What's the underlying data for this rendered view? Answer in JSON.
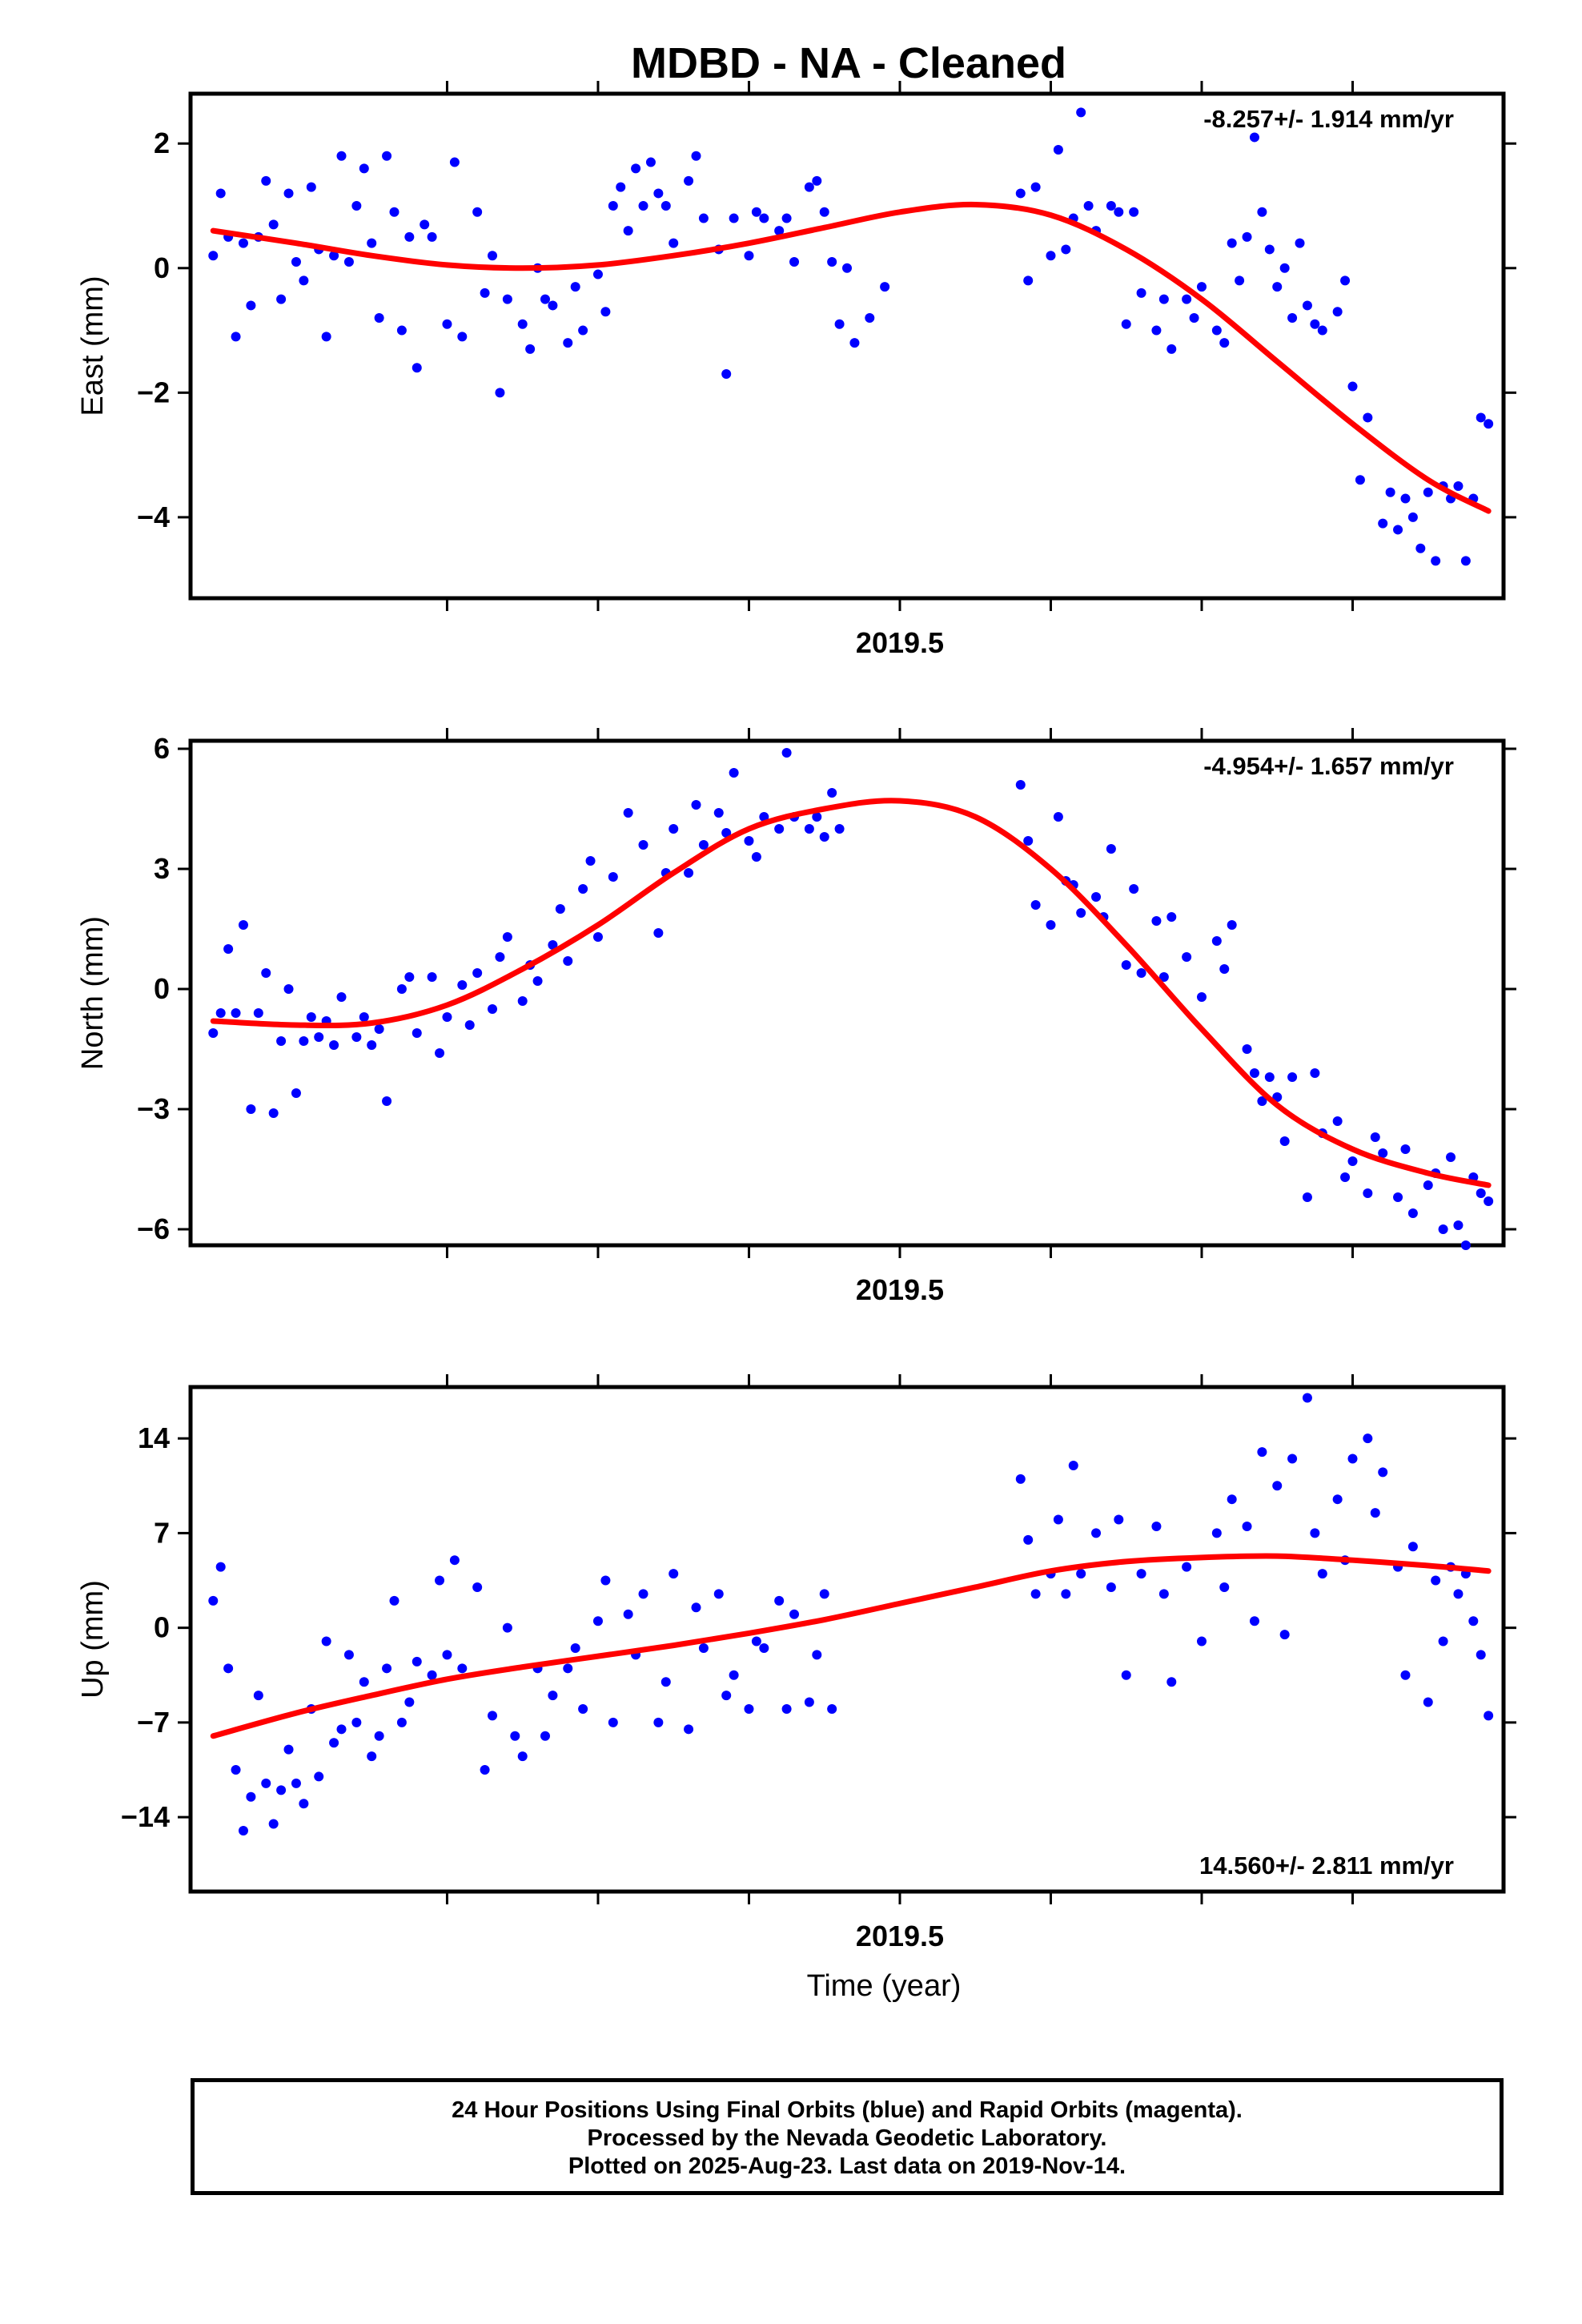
{
  "title": "MDBD  - NA - Cleaned",
  "colors": {
    "points": "#0000ff",
    "fit": "#ff0000",
    "frame": "#000000"
  },
  "footer": {
    "line1": "24 Hour Positions Using Final Orbits (blue) and Rapid Orbits (magenta).",
    "line2": "Processed by the Nevada Geodetic Laboratory.",
    "line3": "Plotted on 2025-Aug-23. Last data on 2019-Nov-14."
  },
  "chart_data": [
    {
      "type": "scatter",
      "ylabel": "East (mm)",
      "xlabel": "",
      "x_tick_label": "2019.5",
      "annotation": "-8.257+/- 1.914 mm/yr",
      "annotation_position": "top-right",
      "xlim": [
        2019.03,
        2019.9
      ],
      "ylim": [
        -5.3,
        2.8
      ],
      "yticks": [
        2,
        0,
        -2,
        -4
      ],
      "xticks": [
        2019.2,
        2019.3,
        2019.4,
        2019.5,
        2019.6,
        2019.7,
        2019.8
      ],
      "series": [
        {
          "kind": "points",
          "x": [
            2019.045,
            2019.05,
            2019.055,
            2019.06,
            2019.065,
            2019.07,
            2019.075,
            2019.08,
            2019.085,
            2019.09,
            2019.095,
            2019.1,
            2019.105,
            2019.11,
            2019.115,
            2019.12,
            2019.125,
            2019.13,
            2019.135,
            2019.14,
            2019.145,
            2019.15,
            2019.155,
            2019.16,
            2019.165,
            2019.17,
            2019.175,
            2019.18,
            2019.185,
            2019.19,
            2019.2,
            2019.205,
            2019.21,
            2019.22,
            2019.225,
            2019.23,
            2019.235,
            2019.24,
            2019.25,
            2019.255,
            2019.26,
            2019.265,
            2019.27,
            2019.28,
            2019.285,
            2019.29,
            2019.3,
            2019.305,
            2019.31,
            2019.315,
            2019.32,
            2019.325,
            2019.33,
            2019.335,
            2019.34,
            2019.345,
            2019.35,
            2019.36,
            2019.365,
            2019.37,
            2019.38,
            2019.385,
            2019.39,
            2019.4,
            2019.405,
            2019.41,
            2019.42,
            2019.425,
            2019.43,
            2019.44,
            2019.445,
            2019.45,
            2019.455,
            2019.46,
            2019.465,
            2019.47,
            2019.48,
            2019.49,
            2019.58,
            2019.585,
            2019.59,
            2019.6,
            2019.605,
            2019.61,
            2019.615,
            2019.62,
            2019.625,
            2019.63,
            2019.64,
            2019.645,
            2019.65,
            2019.655,
            2019.66,
            2019.67,
            2019.675,
            2019.68,
            2019.69,
            2019.695,
            2019.7,
            2019.71,
            2019.715,
            2019.72,
            2019.725,
            2019.73,
            2019.735,
            2019.74,
            2019.745,
            2019.75,
            2019.755,
            2019.76,
            2019.765,
            2019.77,
            2019.775,
            2019.78,
            2019.79,
            2019.795,
            2019.8,
            2019.805,
            2019.81,
            2019.82,
            2019.825,
            2019.83,
            2019.835,
            2019.84,
            2019.845,
            2019.85,
            2019.855,
            2019.86,
            2019.865,
            2019.87,
            2019.875,
            2019.88,
            2019.885,
            2019.89
          ],
          "y": [
            0.2,
            1.2,
            0.5,
            -1.1,
            0.4,
            -0.6,
            0.5,
            1.4,
            0.7,
            -0.5,
            1.2,
            0.1,
            -0.2,
            1.3,
            0.3,
            -1.1,
            0.2,
            1.8,
            0.1,
            1.0,
            1.6,
            0.4,
            -0.8,
            1.8,
            0.9,
            -1.0,
            0.5,
            -1.6,
            0.7,
            0.5,
            -0.9,
            1.7,
            -1.1,
            0.9,
            -0.4,
            0.2,
            -2.0,
            -0.5,
            -0.9,
            -1.3,
            0.0,
            -0.5,
            -0.6,
            -1.2,
            -0.3,
            -1.0,
            -0.1,
            -0.7,
            1.0,
            1.3,
            0.6,
            1.6,
            1.0,
            1.7,
            1.2,
            1.0,
            0.4,
            1.4,
            1.8,
            0.8,
            0.3,
            -1.7,
            0.8,
            0.2,
            0.9,
            0.8,
            0.6,
            0.8,
            0.1,
            1.3,
            1.4,
            0.9,
            0.1,
            -0.9,
            0.0,
            -1.2,
            -0.8,
            -0.3,
            1.2,
            -0.2,
            1.3,
            0.2,
            1.9,
            0.3,
            0.8,
            2.5,
            1.0,
            0.6,
            1.0,
            0.9,
            -0.9,
            0.9,
            -0.4,
            -1.0,
            -0.5,
            -1.3,
            -0.5,
            -0.8,
            -0.3,
            -1.0,
            -1.2,
            0.4,
            -0.2,
            0.5,
            2.1,
            0.9,
            0.3,
            -0.3,
            0.0,
            -0.8,
            0.4,
            -0.6,
            -0.9,
            -1.0,
            -0.7,
            -0.2,
            -1.9,
            -3.4,
            -2.4,
            -4.1,
            -3.6,
            -4.2,
            -3.7,
            -4.0,
            -4.5,
            -3.6,
            -4.7,
            -3.5,
            -3.7,
            -3.5,
            -4.7,
            -3.7,
            -2.4,
            -2.5
          ]
        },
        {
          "kind": "fit",
          "x": [
            2019.045,
            2019.1,
            2019.15,
            2019.2,
            2019.25,
            2019.3,
            2019.35,
            2019.4,
            2019.45,
            2019.5,
            2019.55,
            2019.6,
            2019.65,
            2019.7,
            2019.75,
            2019.8,
            2019.85,
            2019.89
          ],
          "y": [
            0.6,
            0.4,
            0.2,
            0.05,
            0.0,
            0.05,
            0.2,
            0.4,
            0.65,
            0.9,
            1.02,
            0.85,
            0.3,
            -0.5,
            -1.5,
            -2.5,
            -3.4,
            -3.9
          ]
        }
      ]
    },
    {
      "type": "scatter",
      "ylabel": "North (mm)",
      "xlabel": "",
      "x_tick_label": "2019.5",
      "annotation": "-4.954+/- 1.657 mm/yr",
      "annotation_position": "top-right",
      "xlim": [
        2019.03,
        2019.9
      ],
      "ylim": [
        -6.4,
        6.2
      ],
      "yticks": [
        6,
        3,
        0,
        -3,
        -6
      ],
      "xticks": [
        2019.2,
        2019.3,
        2019.4,
        2019.5,
        2019.6,
        2019.7,
        2019.8
      ],
      "series": [
        {
          "kind": "points",
          "x": [
            2019.045,
            2019.05,
            2019.055,
            2019.06,
            2019.065,
            2019.07,
            2019.075,
            2019.08,
            2019.085,
            2019.09,
            2019.095,
            2019.1,
            2019.105,
            2019.11,
            2019.115,
            2019.12,
            2019.125,
            2019.13,
            2019.14,
            2019.145,
            2019.15,
            2019.155,
            2019.16,
            2019.17,
            2019.175,
            2019.18,
            2019.19,
            2019.195,
            2019.2,
            2019.21,
            2019.215,
            2019.22,
            2019.23,
            2019.235,
            2019.24,
            2019.25,
            2019.255,
            2019.26,
            2019.27,
            2019.275,
            2019.28,
            2019.29,
            2019.295,
            2019.3,
            2019.31,
            2019.32,
            2019.33,
            2019.34,
            2019.345,
            2019.35,
            2019.36,
            2019.365,
            2019.37,
            2019.38,
            2019.385,
            2019.39,
            2019.4,
            2019.405,
            2019.41,
            2019.42,
            2019.425,
            2019.43,
            2019.44,
            2019.445,
            2019.45,
            2019.455,
            2019.46,
            2019.58,
            2019.585,
            2019.59,
            2019.6,
            2019.605,
            2019.61,
            2019.615,
            2019.62,
            2019.63,
            2019.635,
            2019.64,
            2019.65,
            2019.655,
            2019.66,
            2019.67,
            2019.675,
            2019.68,
            2019.69,
            2019.7,
            2019.71,
            2019.715,
            2019.72,
            2019.73,
            2019.735,
            2019.74,
            2019.745,
            2019.75,
            2019.755,
            2019.76,
            2019.77,
            2019.775,
            2019.78,
            2019.79,
            2019.795,
            2019.8,
            2019.81,
            2019.815,
            2019.82,
            2019.83,
            2019.835,
            2019.84,
            2019.85,
            2019.855,
            2019.86,
            2019.865,
            2019.87,
            2019.875,
            2019.88,
            2019.885,
            2019.89
          ],
          "y": [
            -1.1,
            -0.6,
            1.0,
            -0.6,
            1.6,
            -3.0,
            -0.6,
            0.4,
            -3.1,
            -1.3,
            0.0,
            -2.6,
            -1.3,
            -0.7,
            -1.2,
            -0.8,
            -1.4,
            -0.2,
            -1.2,
            -0.7,
            -1.4,
            -1.0,
            -2.8,
            0.0,
            0.3,
            -1.1,
            0.3,
            -1.6,
            -0.7,
            0.1,
            -0.9,
            0.4,
            -0.5,
            0.8,
            1.3,
            -0.3,
            0.6,
            0.2,
            1.1,
            2.0,
            0.7,
            2.5,
            3.2,
            1.3,
            2.8,
            4.4,
            3.6,
            1.4,
            2.9,
            4.0,
            2.9,
            4.6,
            3.6,
            4.4,
            3.9,
            5.4,
            3.7,
            3.3,
            4.3,
            4.0,
            5.9,
            4.3,
            4.0,
            4.3,
            3.8,
            4.9,
            4.0,
            5.1,
            3.7,
            2.1,
            1.6,
            4.3,
            2.7,
            2.6,
            1.9,
            2.3,
            1.8,
            3.5,
            0.6,
            2.5,
            0.4,
            1.7,
            0.3,
            1.8,
            0.8,
            -0.2,
            1.2,
            0.5,
            1.6,
            -1.5,
            -2.1,
            -2.8,
            -2.2,
            -2.7,
            -3.8,
            -2.2,
            -5.2,
            -2.1,
            -3.6,
            -3.3,
            -4.7,
            -4.3,
            -5.1,
            -3.7,
            -4.1,
            -5.2,
            -4.0,
            -5.6,
            -4.9,
            -4.6,
            -6.0,
            -4.2,
            -5.9,
            -6.4,
            -4.7,
            -5.1,
            -5.3
          ]
        },
        {
          "kind": "fit",
          "x": [
            2019.045,
            2019.1,
            2019.15,
            2019.2,
            2019.25,
            2019.3,
            2019.35,
            2019.4,
            2019.45,
            2019.5,
            2019.55,
            2019.6,
            2019.65,
            2019.7,
            2019.75,
            2019.8,
            2019.85,
            2019.89
          ],
          "y": [
            -0.8,
            -0.9,
            -0.85,
            -0.4,
            0.5,
            1.6,
            2.9,
            4.0,
            4.5,
            4.7,
            4.3,
            3.0,
            1.1,
            -1.0,
            -2.9,
            -4.0,
            -4.6,
            -4.9
          ]
        }
      ]
    },
    {
      "type": "scatter",
      "ylabel": "Up (mm)",
      "xlabel": "Time (year)",
      "x_tick_label": "2019.5",
      "annotation": "14.560+/- 2.811 mm/yr",
      "annotation_position": "bottom-right",
      "xlim": [
        2019.03,
        2019.9
      ],
      "ylim": [
        -19.5,
        17.8
      ],
      "yticks": [
        14,
        7,
        0,
        -7,
        -14
      ],
      "xticks": [
        2019.2,
        2019.3,
        2019.4,
        2019.5,
        2019.6,
        2019.7,
        2019.8
      ],
      "series": [
        {
          "kind": "points",
          "x": [
            2019.045,
            2019.05,
            2019.055,
            2019.06,
            2019.065,
            2019.07,
            2019.075,
            2019.08,
            2019.085,
            2019.09,
            2019.095,
            2019.1,
            2019.105,
            2019.11,
            2019.115,
            2019.12,
            2019.125,
            2019.13,
            2019.135,
            2019.14,
            2019.145,
            2019.15,
            2019.155,
            2019.16,
            2019.165,
            2019.17,
            2019.175,
            2019.18,
            2019.19,
            2019.195,
            2019.2,
            2019.205,
            2019.21,
            2019.22,
            2019.225,
            2019.23,
            2019.24,
            2019.245,
            2019.25,
            2019.26,
            2019.265,
            2019.27,
            2019.28,
            2019.285,
            2019.29,
            2019.3,
            2019.305,
            2019.31,
            2019.32,
            2019.325,
            2019.33,
            2019.34,
            2019.345,
            2019.35,
            2019.36,
            2019.365,
            2019.37,
            2019.38,
            2019.385,
            2019.39,
            2019.4,
            2019.405,
            2019.41,
            2019.42,
            2019.425,
            2019.43,
            2019.44,
            2019.445,
            2019.45,
            2019.455,
            2019.58,
            2019.585,
            2019.59,
            2019.6,
            2019.605,
            2019.61,
            2019.615,
            2019.62,
            2019.63,
            2019.64,
            2019.645,
            2019.65,
            2019.66,
            2019.67,
            2019.675,
            2019.68,
            2019.69,
            2019.7,
            2019.71,
            2019.715,
            2019.72,
            2019.73,
            2019.735,
            2019.74,
            2019.75,
            2019.755,
            2019.76,
            2019.77,
            2019.775,
            2019.78,
            2019.79,
            2019.795,
            2019.8,
            2019.81,
            2019.815,
            2019.82,
            2019.83,
            2019.835,
            2019.84,
            2019.85,
            2019.855,
            2019.86,
            2019.865,
            2019.87,
            2019.875,
            2019.88,
            2019.885,
            2019.89
          ],
          "y": [
            2.0,
            4.5,
            -3.0,
            -10.5,
            -15.0,
            -12.5,
            -5.0,
            -11.5,
            -14.5,
            -12.0,
            -9.0,
            -11.5,
            -13.0,
            -6.0,
            -11.0,
            -1.0,
            -8.5,
            -7.5,
            -2.0,
            -7.0,
            -4.0,
            -9.5,
            -8.0,
            -3.0,
            2.0,
            -7.0,
            -5.5,
            -2.5,
            -3.5,
            3.5,
            -2.0,
            5.0,
            -3.0,
            3.0,
            -10.5,
            -6.5,
            0.0,
            -8.0,
            -9.5,
            -3.0,
            -8.0,
            -5.0,
            -3.0,
            -1.5,
            -6.0,
            0.5,
            3.5,
            -7.0,
            1.0,
            -2.0,
            2.5,
            -7.0,
            -4.0,
            4.0,
            -7.5,
            1.5,
            -1.5,
            2.5,
            -5.0,
            -3.5,
            -6.0,
            -1.0,
            -1.5,
            2.0,
            -6.0,
            1.0,
            -5.5,
            -2.0,
            2.5,
            -6.0,
            11.0,
            6.5,
            2.5,
            4.0,
            8.0,
            2.5,
            12.0,
            4.0,
            7.0,
            3.0,
            8.0,
            -3.5,
            4.0,
            7.5,
            2.5,
            -4.0,
            4.5,
            -1.0,
            7.0,
            3.0,
            9.5,
            7.5,
            0.5,
            13.0,
            10.5,
            -0.5,
            12.5,
            17.0,
            7.0,
            4.0,
            9.5,
            5.0,
            12.5,
            14.0,
            8.5,
            11.5,
            4.5,
            -3.5,
            6.0,
            -5.5,
            3.5,
            -1.0,
            4.5,
            2.5,
            4.0,
            0.5,
            -2.0,
            -6.5
          ]
        },
        {
          "kind": "fit",
          "x": [
            2019.045,
            2019.1,
            2019.15,
            2019.2,
            2019.25,
            2019.3,
            2019.35,
            2019.4,
            2019.45,
            2019.5,
            2019.55,
            2019.6,
            2019.65,
            2019.7,
            2019.75,
            2019.8,
            2019.85,
            2019.89
          ],
          "y": [
            -8.0,
            -6.3,
            -5.0,
            -3.8,
            -2.9,
            -2.1,
            -1.3,
            -0.4,
            0.6,
            1.8,
            3.0,
            4.2,
            4.9,
            5.2,
            5.3,
            5.0,
            4.6,
            4.2
          ]
        }
      ]
    }
  ]
}
